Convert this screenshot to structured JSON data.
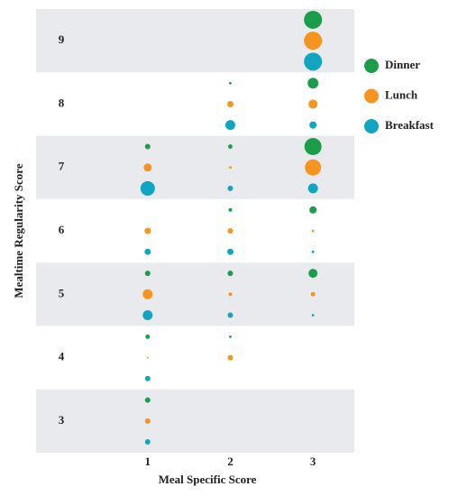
{
  "chart_data": {
    "type": "bubble",
    "xlabel": "Meal Specific Score",
    "ylabel": "Mealtime Regularity Score",
    "xlim": [
      -0.35,
      3.5
    ],
    "xticks": [
      1,
      2,
      3
    ],
    "ylim": [
      2.5,
      9.5
    ],
    "yticks": [
      3,
      4,
      5,
      6,
      7,
      8,
      9
    ],
    "legend": "right",
    "series": [
      {
        "name": "Dinner",
        "color": "#1a9e4a",
        "x": [
          3,
          2,
          3,
          1,
          2,
          3,
          2,
          3,
          1,
          2,
          3,
          1,
          2,
          1
        ],
        "y": [
          9,
          8,
          8,
          7,
          7,
          7,
          6,
          6,
          5,
          5,
          5,
          4,
          4,
          3
        ],
        "sizes": [
          100,
          2,
          36,
          9,
          6,
          90,
          4,
          16,
          9,
          9,
          25,
          6,
          2,
          9
        ]
      },
      {
        "name": "Lunch",
        "color": "#f7941d",
        "x": [
          3,
          2,
          3,
          1,
          2,
          3,
          1,
          2,
          3,
          1,
          2,
          3,
          1,
          2,
          1
        ],
        "y": [
          9,
          8,
          8,
          7,
          7,
          7,
          6,
          6,
          6,
          5,
          5,
          5,
          4,
          4,
          3
        ],
        "sizes": [
          100,
          12,
          25,
          20,
          2,
          81,
          12,
          9,
          2,
          30,
          4,
          6,
          1,
          9,
          9
        ]
      },
      {
        "name": "Breakfast",
        "color": "#10a5c0",
        "x": [
          3,
          2,
          3,
          1,
          2,
          3,
          1,
          2,
          3,
          1,
          2,
          3,
          1,
          1
        ],
        "y": [
          9,
          8,
          8,
          7,
          7,
          7,
          6,
          6,
          6,
          5,
          5,
          5,
          4,
          3
        ],
        "sizes": [
          100,
          30,
          16,
          64,
          9,
          30,
          12,
          12,
          2,
          30,
          9,
          2,
          9,
          9
        ]
      }
    ]
  }
}
